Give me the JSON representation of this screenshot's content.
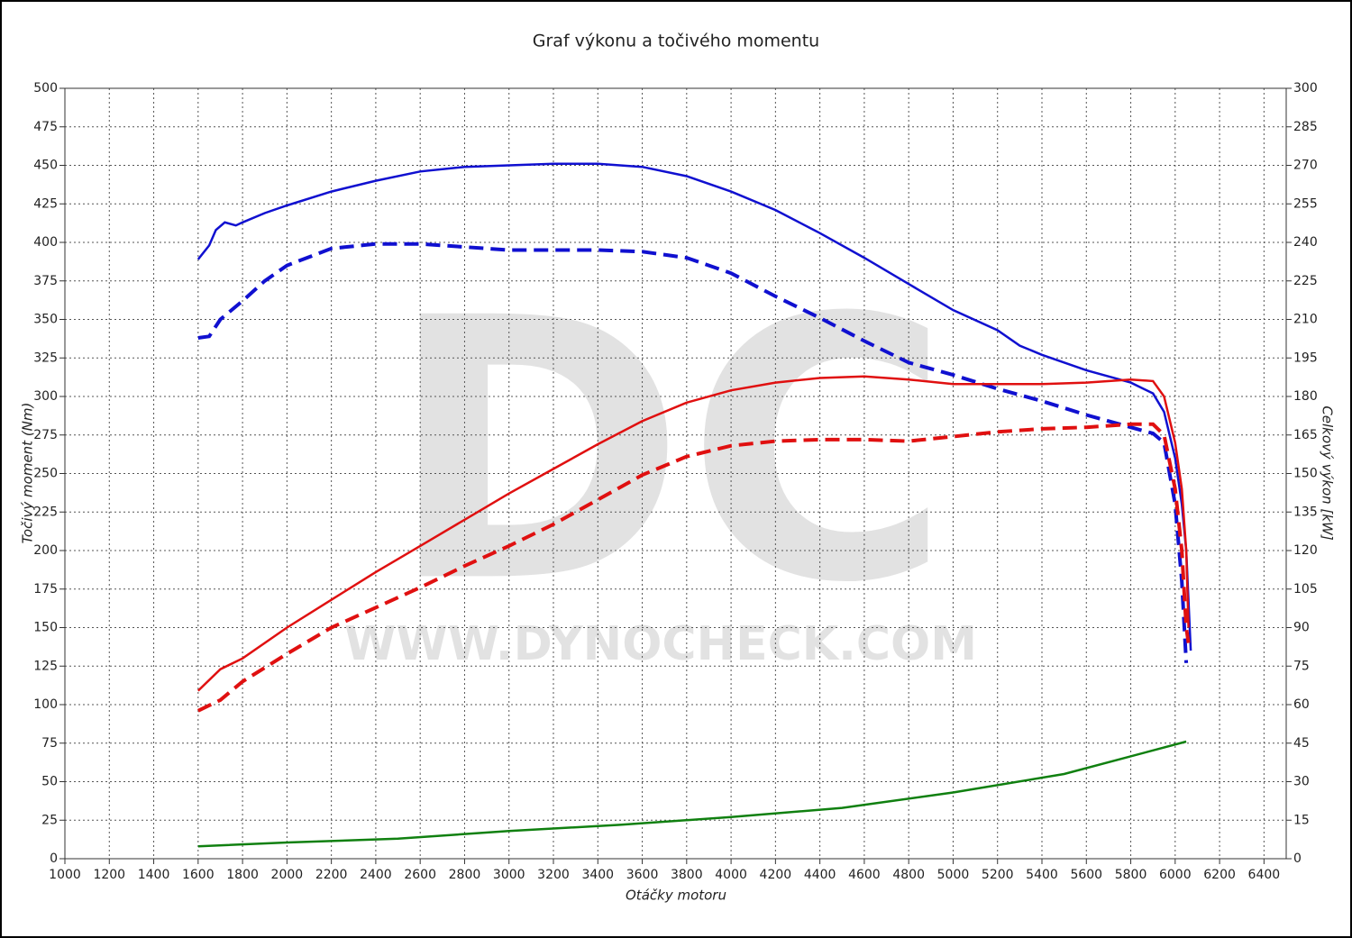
{
  "chart_data": {
    "type": "line",
    "title": "Graf výkonu a točivého momentu",
    "xlabel": "Otáčky motoru",
    "ylabel": "Točivý moment (Nm)",
    "y2label": "Celkový výkon [kW]",
    "watermark": "DC",
    "watermark_url": "WWW.DYNOCHECK.COM",
    "grid": true,
    "xlim": [
      1000,
      6500
    ],
    "xticks": [
      1000,
      1200,
      1400,
      1600,
      1800,
      2000,
      2200,
      2400,
      2600,
      2800,
      3000,
      3200,
      3400,
      3600,
      3800,
      4000,
      4200,
      4400,
      4600,
      4800,
      5000,
      5200,
      5400,
      5600,
      5800,
      6000,
      6200,
      6400
    ],
    "ylim": [
      0,
      500
    ],
    "yticks": [
      0,
      25,
      50,
      75,
      100,
      125,
      150,
      175,
      200,
      225,
      250,
      275,
      300,
      325,
      350,
      375,
      400,
      425,
      450,
      475,
      500
    ],
    "y2lim": [
      0,
      300
    ],
    "y2ticks": [
      0,
      15,
      30,
      45,
      60,
      75,
      90,
      105,
      120,
      135,
      150,
      165,
      180,
      195,
      210,
      225,
      240,
      255,
      270,
      285,
      300
    ],
    "series": [
      {
        "color": "#1010d0",
        "style": "solid",
        "axis": "y",
        "x": [
          1600,
          1650,
          1680,
          1720,
          1770,
          1800,
          1900,
          2000,
          2200,
          2400,
          2600,
          2800,
          3000,
          3200,
          3400,
          3600,
          3800,
          4000,
          4200,
          4400,
          4600,
          4800,
          5000,
          5200,
          5300,
          5400,
          5600,
          5800,
          5900,
          5950,
          6000,
          6030,
          6050,
          6070
        ],
        "values": [
          389,
          398,
          408,
          413,
          411,
          413,
          419,
          424,
          433,
          440,
          446,
          449,
          450,
          451,
          451,
          449,
          443,
          433,
          421,
          406,
          390,
          373,
          356,
          343,
          333,
          327,
          317,
          309,
          302,
          290,
          260,
          230,
          200,
          135
        ]
      },
      {
        "color": "#1010d0",
        "style": "dashed",
        "axis": "y",
        "x": [
          1600,
          1650,
          1700,
          1800,
          1900,
          2000,
          2200,
          2400,
          2600,
          2800,
          3000,
          3200,
          3400,
          3600,
          3800,
          4000,
          4200,
          4400,
          4600,
          4800,
          5000,
          5200,
          5400,
          5600,
          5800,
          5900,
          5950,
          6000,
          6030,
          6050
        ],
        "values": [
          338,
          339,
          350,
          362,
          375,
          385,
          396,
          399,
          399,
          397,
          395,
          395,
          395,
          394,
          390,
          380,
          365,
          351,
          336,
          322,
          314,
          305,
          297,
          288,
          280,
          276,
          270,
          230,
          180,
          127
        ]
      },
      {
        "color": "#e01010",
        "style": "solid",
        "axis": "y2",
        "x": [
          1600,
          1700,
          1800,
          2000,
          2200,
          2400,
          2600,
          2800,
          3000,
          3200,
          3400,
          3600,
          3800,
          4000,
          4200,
          4400,
          4600,
          4800,
          5000,
          5200,
          5400,
          5600,
          5800,
          5900,
          5950,
          6000,
          6030,
          6050,
          6060
        ],
        "values": [
          65.4,
          73.8,
          78,
          90,
          100.8,
          111.6,
          121.8,
          132,
          142.2,
          151.8,
          161.4,
          170.4,
          177.6,
          182.4,
          185.4,
          187.2,
          187.8,
          186.6,
          184.8,
          184.8,
          184.8,
          185.4,
          186.6,
          186,
          180,
          162,
          144,
          120,
          90
        ]
      },
      {
        "color": "#e01010",
        "style": "dashed",
        "axis": "y2",
        "x": [
          1600,
          1700,
          1800,
          2000,
          2200,
          2400,
          2600,
          2800,
          3000,
          3200,
          3400,
          3600,
          3800,
          4000,
          4200,
          4400,
          4600,
          4800,
          5000,
          5200,
          5400,
          5600,
          5800,
          5900,
          5950,
          6000,
          6030,
          6050,
          6060
        ],
        "values": [
          57.6,
          61.8,
          69,
          79.8,
          90,
          97.8,
          105.6,
          114,
          121.8,
          130.2,
          139.8,
          149.4,
          156.6,
          160.8,
          162.6,
          163.2,
          163.2,
          162.6,
          164.4,
          166.2,
          167.4,
          168,
          169.2,
          169.2,
          165,
          144,
          120,
          90,
          84
        ]
      },
      {
        "color": "#108010",
        "style": "solid",
        "axis": "y2",
        "x": [
          1600,
          2000,
          2500,
          3000,
          3500,
          4000,
          4500,
          5000,
          5500,
          6050
        ],
        "values": [
          4.8,
          6.3,
          7.8,
          10.8,
          13.2,
          16.2,
          19.8,
          25.8,
          33,
          45.6
        ]
      }
    ]
  }
}
